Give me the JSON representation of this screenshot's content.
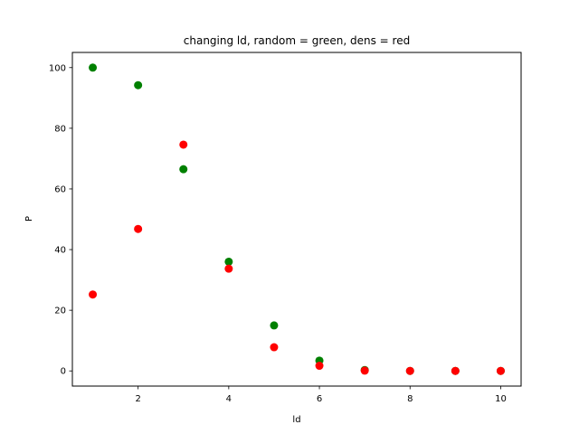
{
  "chart_data": {
    "type": "scatter",
    "title": "changing ld, random = green, dens = red",
    "xlabel": "ld",
    "ylabel": "P",
    "xlim": [
      0.55,
      10.45
    ],
    "ylim": [
      -5,
      105
    ],
    "xticks": [
      2,
      4,
      6,
      8,
      10
    ],
    "yticks": [
      0,
      20,
      40,
      60,
      80,
      100
    ],
    "grid": false,
    "series": [
      {
        "color": "#008000",
        "x": [
          1,
          2,
          3,
          4,
          5,
          6,
          7,
          8,
          9,
          10
        ],
        "y": [
          100,
          94.2,
          66.5,
          36,
          15,
          3.4,
          0.3,
          0,
          0,
          0
        ]
      },
      {
        "color": "#ff0000",
        "x": [
          1,
          2,
          3,
          4,
          5,
          6,
          7,
          8,
          9,
          10
        ],
        "y": [
          25.2,
          46.8,
          74.6,
          33.7,
          7.8,
          1.7,
          0.1,
          0,
          0,
          0
        ]
      }
    ]
  }
}
